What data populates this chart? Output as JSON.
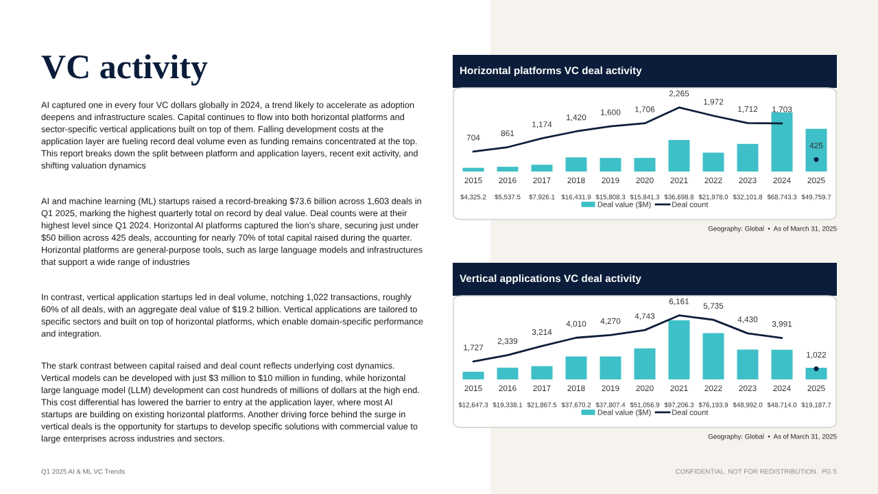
{
  "chart_data": [
    {
      "type": "other",
      "title": "VC activity",
      "annotations": [
        "AI captured one in every four VC dollars globally in 2024, a trend likely to accelerate as adoption deepens and infrastructure scales. Capital continues to flow into both horizontal platforms and sector-specific vertical applications built on top of them. Falling development costs at the application layer are fueling record deal volume even as funding remains concentrated at the top. This report breaks down the split between platform and application layers, recent exit activity, and shifting valuation dynamics",
        "AI and machine learning (ML) startups raised a record-breaking $73.6 billion across 1,603 deals in Q1 2025, marking the highest quarterly total on record by deal value. Deal counts were at their highest level since Q1 2024. Horizontal AI platforms captured the lion’s share, securing just under $50 billion across 425 deals, accounting for nearly 70% of total capital raised during the quarter. Horizontal platforms are general-purpose tools, such as large language models and infrastructures that support a wide range of industries",
        "In contrast, vertical application startups led in deal volume, notching 1,022 transactions, roughly 60% of all deals, with an aggregate deal value of $19.2 billion. Vertical applications are tailored to specific sectors and built on top of horizontal platforms, which enable domain-specific performance and integration.",
        "The stark contrast between capital raised and deal count reflects underlying cost dynamics. Vertical models can be developed with just $3 million to $10 million in funding, while horizontal large language model (LLM) development can cost hundreds of millions of dollars at the high end. This cost differential has lowered the barrier to entry at the application layer, where most AI startups are building on existing horizontal platforms. Another driving force behind the surge in vertical deals is the opportunity for startups to develop specific solutions with commercial value to large enterprises across industries and sectors.",
        "Q1 2025 AI & ML VC Trends",
        "CONFIDENTIAL. NOT FOR REDISTRIBUTION.  PG 5"
      ]
    },
    {
      "type": "bar",
      "title": "Horizontal platforms VC deal activity",
      "categories": [
        "2015",
        "2016",
        "2017",
        "2018",
        "2019",
        "2020",
        "2021",
        "2022",
        "2023",
        "2024",
        "2025"
      ],
      "tick_labels": "x",
      "legend": "bottom",
      "grid": false,
      "annotations": [
        "Geography: Global  •  As of March 31, 2025"
      ],
      "series": [
        {
          "name": "Deal value ($M)",
          "type": "bar",
          "color": "#3fbfc7",
          "values": [
            4325.2,
            5537.5,
            7926.1,
            16431.9,
            15808.3,
            15841.3,
            36698.8,
            21978.0,
            32101.8,
            68743.3,
            49759.7
          ],
          "value_labels": [
            "$4,325.2",
            "$5,537.5",
            "$7,926.1",
            "$16,431.9",
            "$15,808.3",
            "$15,841.3",
            "$36,698.8",
            "$21,978.0",
            "$32,101.8",
            "$68,743.3",
            "$49,759.7"
          ]
        },
        {
          "name": "Deal count",
          "type": "line",
          "axis": "y2",
          "color": "#0b1d3a",
          "marker": "none",
          "line_style": "solid",
          "values": [
            704,
            861,
            1174,
            1420,
            1600,
            1706,
            2265,
            1972,
            1712,
            1703,
            null
          ],
          "value_labels": [
            "704",
            "861",
            "1,174",
            "1,420",
            "1,600",
            "1,706",
            "2,265",
            "1,972",
            "1,712",
            "1,703",
            null
          ]
        },
        {
          "type": "scatter",
          "axis": "y2",
          "color": "#0b1d3a",
          "marker": "circle",
          "values": [
            null,
            null,
            null,
            null,
            null,
            null,
            null,
            null,
            null,
            null,
            425
          ],
          "value_labels": [
            null,
            null,
            null,
            null,
            null,
            null,
            null,
            null,
            null,
            null,
            "425"
          ]
        }
      ]
    },
    {
      "type": "bar",
      "title": "Vertical applications VC deal activity",
      "categories": [
        "2015",
        "2016",
        "2017",
        "2018",
        "2019",
        "2020",
        "2021",
        "2022",
        "2023",
        "2024",
        "2025"
      ],
      "tick_labels": "x",
      "legend": "bottom",
      "grid": false,
      "annotations": [
        "Geography: Global  •  As of March 31, 2025"
      ],
      "series": [
        {
          "name": "Deal value ($M)",
          "type": "bar",
          "color": "#3fbfc7",
          "values": [
            12647.3,
            19338.1,
            21867.5,
            37670.2,
            37807.4,
            51056.9,
            97206.3,
            76193.9,
            48992.0,
            48714.0,
            19187.7
          ],
          "value_labels": [
            "$12,647.3",
            "$19,338.1",
            "$21,867.5",
            "$37,670.2",
            "$37,807.4",
            "$51,056.9",
            "$97,206.3",
            "$76,193.9",
            "$48,992.0",
            "$48,714.0",
            "$19,187.7"
          ]
        },
        {
          "name": "Deal count",
          "type": "line",
          "axis": "y2",
          "color": "#0b1d3a",
          "marker": "none",
          "line_style": "solid",
          "values": [
            1727,
            2339,
            3214,
            4010,
            4270,
            4743,
            6161,
            5735,
            4430,
            3991,
            null
          ],
          "value_labels": [
            "1,727",
            "2,339",
            "3,214",
            "4,010",
            "4,270",
            "4,743",
            "6,161",
            "5,735",
            "4,430",
            "3,991",
            null
          ]
        },
        {
          "type": "scatter",
          "axis": "y2",
          "color": "#0b1d3a",
          "marker": "circle",
          "values": [
            null,
            null,
            null,
            null,
            null,
            null,
            null,
            null,
            null,
            null,
            1022
          ],
          "value_labels": [
            null,
            null,
            null,
            null,
            null,
            null,
            null,
            null,
            null,
            null,
            "1,022"
          ]
        }
      ]
    }
  ]
}
